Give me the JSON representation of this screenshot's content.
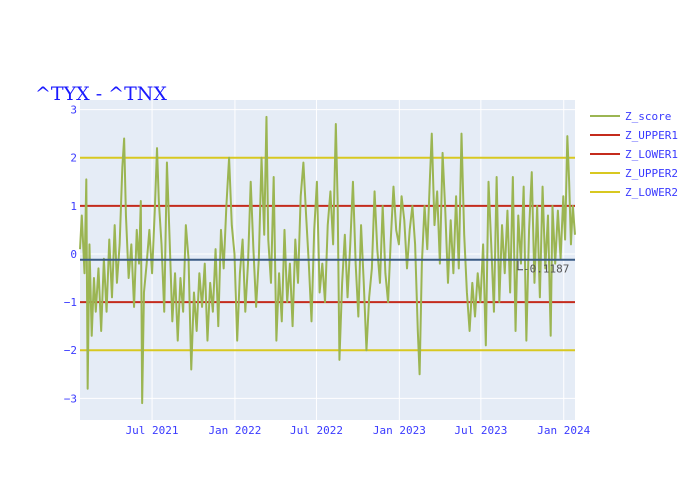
{
  "chart_data": {
    "type": "line",
    "title": "^TYX - ^TNX",
    "xlabel": "",
    "ylabel": "",
    "x_ticks": [
      {
        "date": "2021-07-01",
        "label": "Jul 2021"
      },
      {
        "date": "2022-01-01",
        "label": "Jan 2022"
      },
      {
        "date": "2022-07-01",
        "label": "Jul 2022"
      },
      {
        "date": "2023-01-01",
        "label": "Jan 2023"
      },
      {
        "date": "2023-07-01",
        "label": "Jul 2023"
      },
      {
        "date": "2024-01-01",
        "label": "Jan 2024"
      }
    ],
    "y_ticks": [
      -3,
      -2,
      -1,
      0,
      1,
      2,
      3
    ],
    "xlim": [
      "2021-01-22",
      "2024-01-26"
    ],
    "ylim": [
      -3.45,
      3.2
    ],
    "grid": true,
    "legend_position": "right",
    "colors": {
      "z_score": "#9bb552",
      "band1": "#c42b1c",
      "band2": "#d8c820",
      "mean": "#3b5b85",
      "plot_bg": "#e5ecf6",
      "title": "#1a1aff",
      "tick_text": "#3a3aff"
    },
    "series": [
      {
        "name": "Z_score",
        "points": [
          [
            "2021-01-22",
            0.1
          ],
          [
            "2021-01-26",
            0.8
          ],
          [
            "2021-02-01",
            -0.4
          ],
          [
            "2021-02-05",
            1.55
          ],
          [
            "2021-02-08",
            -2.8
          ],
          [
            "2021-02-12",
            0.2
          ],
          [
            "2021-02-17",
            -1.7
          ],
          [
            "2021-02-22",
            -0.5
          ],
          [
            "2021-02-26",
            -1.2
          ],
          [
            "2021-03-04",
            -0.3
          ],
          [
            "2021-03-10",
            -1.6
          ],
          [
            "2021-03-16",
            -0.1
          ],
          [
            "2021-03-22",
            -1.2
          ],
          [
            "2021-03-28",
            0.3
          ],
          [
            "2021-04-03",
            -0.9
          ],
          [
            "2021-04-09",
            0.6
          ],
          [
            "2021-04-14",
            -0.6
          ],
          [
            "2021-04-20",
            0.2
          ],
          [
            "2021-04-26",
            1.8
          ],
          [
            "2021-04-30",
            2.4
          ],
          [
            "2021-05-04",
            0.8
          ],
          [
            "2021-05-10",
            -0.5
          ],
          [
            "2021-05-16",
            0.2
          ],
          [
            "2021-05-22",
            -1.1
          ],
          [
            "2021-05-28",
            0.5
          ],
          [
            "2021-06-02",
            -0.2
          ],
          [
            "2021-06-06",
            1.1
          ],
          [
            "2021-06-09",
            -3.1
          ],
          [
            "2021-06-13",
            -0.8
          ],
          [
            "2021-06-19",
            -0.2
          ],
          [
            "2021-06-25",
            0.5
          ],
          [
            "2021-07-01",
            -0.4
          ],
          [
            "2021-07-07",
            0.9
          ],
          [
            "2021-07-12",
            2.2
          ],
          [
            "2021-07-16",
            1.1
          ],
          [
            "2021-07-22",
            0.2
          ],
          [
            "2021-07-28",
            -1.2
          ],
          [
            "2021-08-03",
            1.9
          ],
          [
            "2021-08-09",
            0.3
          ],
          [
            "2021-08-15",
            -1.4
          ],
          [
            "2021-08-21",
            -0.4
          ],
          [
            "2021-08-27",
            -1.8
          ],
          [
            "2021-09-02",
            -0.5
          ],
          [
            "2021-09-08",
            -1.2
          ],
          [
            "2021-09-14",
            0.6
          ],
          [
            "2021-09-20",
            -0.1
          ],
          [
            "2021-09-26",
            -2.4
          ],
          [
            "2021-10-02",
            -0.8
          ],
          [
            "2021-10-08",
            -1.6
          ],
          [
            "2021-10-14",
            -0.4
          ],
          [
            "2021-10-20",
            -1.1
          ],
          [
            "2021-10-26",
            -0.2
          ],
          [
            "2021-11-01",
            -1.8
          ],
          [
            "2021-11-07",
            -0.6
          ],
          [
            "2021-11-13",
            -1.2
          ],
          [
            "2021-11-19",
            0.1
          ],
          [
            "2021-11-25",
            -1.5
          ],
          [
            "2021-12-01",
            0.5
          ],
          [
            "2021-12-07",
            -0.3
          ],
          [
            "2021-12-13",
            1.0
          ],
          [
            "2021-12-19",
            2.0
          ],
          [
            "2021-12-25",
            0.6
          ],
          [
            "2021-12-31",
            0.0
          ],
          [
            "2022-01-06",
            -1.8
          ],
          [
            "2022-01-12",
            -0.4
          ],
          [
            "2022-01-18",
            0.3
          ],
          [
            "2022-01-24",
            -1.2
          ],
          [
            "2022-01-30",
            -0.2
          ],
          [
            "2022-02-05",
            1.5
          ],
          [
            "2022-02-11",
            0.1
          ],
          [
            "2022-02-17",
            -1.1
          ],
          [
            "2022-02-23",
            -0.1
          ],
          [
            "2022-03-01",
            2.0
          ],
          [
            "2022-03-07",
            0.4
          ],
          [
            "2022-03-12",
            2.85
          ],
          [
            "2022-03-16",
            0.3
          ],
          [
            "2022-03-22",
            -0.6
          ],
          [
            "2022-03-28",
            1.6
          ],
          [
            "2022-04-03",
            -1.8
          ],
          [
            "2022-04-09",
            -0.4
          ],
          [
            "2022-04-15",
            -1.4
          ],
          [
            "2022-04-21",
            0.5
          ],
          [
            "2022-04-27",
            -1.0
          ],
          [
            "2022-05-03",
            -0.2
          ],
          [
            "2022-05-09",
            -1.5
          ],
          [
            "2022-05-15",
            0.3
          ],
          [
            "2022-05-21",
            -0.6
          ],
          [
            "2022-05-27",
            1.2
          ],
          [
            "2022-06-02",
            1.9
          ],
          [
            "2022-06-08",
            0.8
          ],
          [
            "2022-06-14",
            -0.2
          ],
          [
            "2022-06-20",
            -1.4
          ],
          [
            "2022-06-26",
            0.5
          ],
          [
            "2022-07-02",
            1.5
          ],
          [
            "2022-07-08",
            -0.8
          ],
          [
            "2022-07-14",
            -0.2
          ],
          [
            "2022-07-20",
            -1.0
          ],
          [
            "2022-07-26",
            0.6
          ],
          [
            "2022-08-01",
            1.3
          ],
          [
            "2022-08-07",
            0.2
          ],
          [
            "2022-08-13",
            2.7
          ],
          [
            "2022-08-17",
            1.1
          ],
          [
            "2022-08-21",
            -2.2
          ],
          [
            "2022-08-27",
            -0.6
          ],
          [
            "2022-09-02",
            0.4
          ],
          [
            "2022-09-08",
            -0.9
          ],
          [
            "2022-09-14",
            0.2
          ],
          [
            "2022-09-20",
            1.5
          ],
          [
            "2022-09-26",
            -0.2
          ],
          [
            "2022-10-02",
            -1.3
          ],
          [
            "2022-10-08",
            0.6
          ],
          [
            "2022-10-14",
            -0.6
          ],
          [
            "2022-10-20",
            -2.0
          ],
          [
            "2022-10-26",
            -0.9
          ],
          [
            "2022-11-01",
            -0.3
          ],
          [
            "2022-11-07",
            1.3
          ],
          [
            "2022-11-13",
            0.1
          ],
          [
            "2022-11-19",
            -0.6
          ],
          [
            "2022-11-25",
            1.0
          ],
          [
            "2022-12-01",
            -0.4
          ],
          [
            "2022-12-07",
            -1.0
          ],
          [
            "2022-12-13",
            0.3
          ],
          [
            "2022-12-19",
            1.4
          ],
          [
            "2022-12-25",
            0.5
          ],
          [
            "2022-12-31",
            0.2
          ],
          [
            "2023-01-06",
            1.2
          ],
          [
            "2023-01-12",
            0.7
          ],
          [
            "2023-01-18",
            -0.3
          ],
          [
            "2023-01-24",
            0.5
          ],
          [
            "2023-01-30",
            1.0
          ],
          [
            "2023-02-05",
            0.2
          ],
          [
            "2023-02-11",
            -1.6
          ],
          [
            "2023-02-15",
            -2.5
          ],
          [
            "2023-02-20",
            -0.2
          ],
          [
            "2023-02-26",
            1.0
          ],
          [
            "2023-03-04",
            0.1
          ],
          [
            "2023-03-10",
            1.6
          ],
          [
            "2023-03-14",
            2.5
          ],
          [
            "2023-03-20",
            0.6
          ],
          [
            "2023-03-26",
            1.3
          ],
          [
            "2023-04-01",
            -0.2
          ],
          [
            "2023-04-07",
            2.1
          ],
          [
            "2023-04-13",
            0.9
          ],
          [
            "2023-04-19",
            -0.6
          ],
          [
            "2023-04-25",
            0.7
          ],
          [
            "2023-05-01",
            -0.4
          ],
          [
            "2023-05-07",
            1.2
          ],
          [
            "2023-05-13",
            -0.3
          ],
          [
            "2023-05-19",
            2.5
          ],
          [
            "2023-05-25",
            0.4
          ],
          [
            "2023-05-31",
            -0.8
          ],
          [
            "2023-06-06",
            -1.6
          ],
          [
            "2023-06-12",
            -0.6
          ],
          [
            "2023-06-18",
            -1.3
          ],
          [
            "2023-06-24",
            -0.4
          ],
          [
            "2023-06-30",
            -1.0
          ],
          [
            "2023-07-06",
            0.2
          ],
          [
            "2023-07-12",
            -1.9
          ],
          [
            "2023-07-18",
            1.5
          ],
          [
            "2023-07-24",
            0.2
          ],
          [
            "2023-07-30",
            -1.2
          ],
          [
            "2023-08-05",
            1.6
          ],
          [
            "2023-08-11",
            -1.0
          ],
          [
            "2023-08-17",
            0.6
          ],
          [
            "2023-08-23",
            -0.4
          ],
          [
            "2023-08-29",
            0.9
          ],
          [
            "2023-09-04",
            -0.8
          ],
          [
            "2023-09-10",
            1.6
          ],
          [
            "2023-09-16",
            -1.6
          ],
          [
            "2023-09-22",
            0.8
          ],
          [
            "2023-09-28",
            -0.2
          ],
          [
            "2023-10-04",
            1.4
          ],
          [
            "2023-10-10",
            -1.8
          ],
          [
            "2023-10-16",
            0.5
          ],
          [
            "2023-10-22",
            1.7
          ],
          [
            "2023-10-28",
            -0.6
          ],
          [
            "2023-11-03",
            1.0
          ],
          [
            "2023-11-09",
            -0.9
          ],
          [
            "2023-11-15",
            1.4
          ],
          [
            "2023-11-21",
            -0.3
          ],
          [
            "2023-11-27",
            0.8
          ],
          [
            "2023-12-03",
            -1.7
          ],
          [
            "2023-12-07",
            1.0
          ],
          [
            "2023-12-13",
            -0.2
          ],
          [
            "2023-12-19",
            0.9
          ],
          [
            "2023-12-25",
            -0.1
          ],
          [
            "2023-12-31",
            1.2
          ],
          [
            "2024-01-04",
            0.3
          ],
          [
            "2024-01-09",
            2.45
          ],
          [
            "2024-01-13",
            1.5
          ],
          [
            "2024-01-17",
            0.2
          ],
          [
            "2024-01-21",
            1.0
          ],
          [
            "2024-01-26",
            0.4
          ]
        ]
      },
      {
        "name": "Z_UPPER1",
        "value": 1
      },
      {
        "name": "Z_LOWER1",
        "value": -1
      },
      {
        "name": "Z_UPPER2",
        "value": 2
      },
      {
        "name": "Z_LOWER2",
        "value": -2
      }
    ],
    "mean_line": {
      "value": -0.1187,
      "label": "-0.1187"
    }
  }
}
